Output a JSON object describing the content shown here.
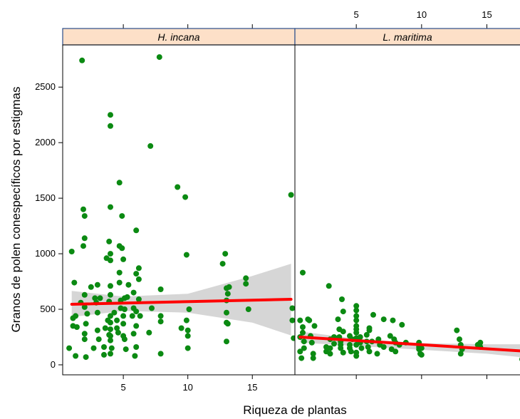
{
  "chart_data": {
    "type": "scatter",
    "layout": "lattice-2-panels",
    "xlabel": "Riqueza de plantas",
    "ylabel": "Granos de polen conespecíficos por estigmas",
    "xlim": [
      0.3,
      18.3
    ],
    "ylim": [
      -90,
      2880
    ],
    "x_ticks": [
      5,
      10,
      15
    ],
    "y_ticks": [
      0,
      500,
      1000,
      1500,
      2000,
      2500
    ],
    "point_color": "#0b8a12",
    "fit_color": "#ff0000",
    "band_color": "#d6d6d6",
    "strip_color": "#fde0c8",
    "strip_border_color": "#2b4e8a",
    "panels": [
      {
        "name": "H. incana",
        "points": [
          [
            0.8,
            150
          ],
          [
            1.0,
            1020
          ],
          [
            1.1,
            350
          ],
          [
            1.1,
            420
          ],
          [
            1.2,
            740
          ],
          [
            1.3,
            80
          ],
          [
            1.3,
            440
          ],
          [
            1.4,
            340
          ],
          [
            1.7,
            560
          ],
          [
            1.8,
            2740
          ],
          [
            1.9,
            1400
          ],
          [
            1.9,
            1070
          ],
          [
            2.0,
            1340
          ],
          [
            2.0,
            1140
          ],
          [
            2.0,
            630
          ],
          [
            2.0,
            520
          ],
          [
            2.0,
            280
          ],
          [
            2.0,
            230
          ],
          [
            2.1,
            70
          ],
          [
            2.1,
            370
          ],
          [
            2.2,
            460
          ],
          [
            2.5,
            700
          ],
          [
            2.7,
            150
          ],
          [
            2.8,
            600
          ],
          [
            2.9,
            560
          ],
          [
            3.0,
            310
          ],
          [
            3.0,
            470
          ],
          [
            3.0,
            720
          ],
          [
            3.1,
            230
          ],
          [
            3.2,
            600
          ],
          [
            3.5,
            90
          ],
          [
            3.5,
            160
          ],
          [
            3.6,
            330
          ],
          [
            3.7,
            960
          ],
          [
            3.8,
            400
          ],
          [
            3.9,
            1110
          ],
          [
            3.9,
            270
          ],
          [
            3.9,
            570
          ],
          [
            4.0,
            2250
          ],
          [
            4.0,
            2150
          ],
          [
            4.0,
            1420
          ],
          [
            4.0,
            1000
          ],
          [
            4.0,
            940
          ],
          [
            4.0,
            710
          ],
          [
            4.0,
            630
          ],
          [
            4.0,
            440
          ],
          [
            4.0,
            380
          ],
          [
            4.0,
            320
          ],
          [
            4.0,
            260
          ],
          [
            4.0,
            220
          ],
          [
            4.0,
            100
          ],
          [
            4.1,
            150
          ],
          [
            4.3,
            470
          ],
          [
            4.5,
            400
          ],
          [
            4.5,
            330
          ],
          [
            4.6,
            290
          ],
          [
            4.7,
            1640
          ],
          [
            4.7,
            1070
          ],
          [
            4.7,
            830
          ],
          [
            4.7,
            740
          ],
          [
            4.8,
            580
          ],
          [
            4.8,
            510
          ],
          [
            4.9,
            1340
          ],
          [
            4.9,
            1050
          ],
          [
            5.0,
            950
          ],
          [
            5.0,
            440
          ],
          [
            5.0,
            370
          ],
          [
            5.0,
            260
          ],
          [
            5.1,
            600
          ],
          [
            5.1,
            500
          ],
          [
            5.1,
            230
          ],
          [
            5.2,
            140
          ],
          [
            5.3,
            610
          ],
          [
            5.4,
            720
          ],
          [
            5.7,
            440
          ],
          [
            5.8,
            650
          ],
          [
            5.8,
            510
          ],
          [
            5.8,
            280
          ],
          [
            5.9,
            80
          ],
          [
            6.0,
            1210
          ],
          [
            6.0,
            820
          ],
          [
            6.0,
            480
          ],
          [
            6.0,
            350
          ],
          [
            6.0,
            160
          ],
          [
            6.2,
            870
          ],
          [
            6.2,
            770
          ],
          [
            6.2,
            590
          ],
          [
            6.3,
            440
          ],
          [
            7.0,
            290
          ],
          [
            7.1,
            1970
          ],
          [
            7.2,
            510
          ],
          [
            7.8,
            2770
          ],
          [
            7.9,
            680
          ],
          [
            7.9,
            440
          ],
          [
            7.9,
            390
          ],
          [
            7.9,
            100
          ],
          [
            9.2,
            1600
          ],
          [
            9.5,
            330
          ],
          [
            9.8,
            1510
          ],
          [
            9.9,
            990
          ],
          [
            9.9,
            400
          ],
          [
            10.0,
            150
          ],
          [
            10.0,
            310
          ],
          [
            10.0,
            260
          ],
          [
            10.1,
            500
          ],
          [
            12.7,
            910
          ],
          [
            12.9,
            1000
          ],
          [
            13.0,
            690
          ],
          [
            13.0,
            580
          ],
          [
            13.0,
            470
          ],
          [
            13.0,
            380
          ],
          [
            13.0,
            210
          ],
          [
            13.1,
            640
          ],
          [
            13.1,
            370
          ],
          [
            13.2,
            700
          ],
          [
            14.5,
            780
          ],
          [
            14.5,
            730
          ],
          [
            14.7,
            500
          ],
          [
            18.0,
            1530
          ],
          [
            18.1,
            510
          ],
          [
            18.1,
            400
          ],
          [
            18.2,
            240
          ]
        ],
        "fit": {
          "x": [
            1.0,
            18.0
          ],
          "y": [
            545,
            590
          ]
        },
        "band": {
          "x": [
            1.0,
            5.0,
            10.0,
            15.0,
            18.0
          ],
          "upper": [
            665,
            615,
            640,
            800,
            910
          ],
          "lower": [
            430,
            485,
            470,
            380,
            265
          ]
        }
      },
      {
        "name": "L. maritima",
        "points": [
          [
            0.7,
            400
          ],
          [
            0.7,
            250
          ],
          [
            0.7,
            120
          ],
          [
            0.8,
            60
          ],
          [
            0.9,
            830
          ],
          [
            0.9,
            340
          ],
          [
            0.9,
            290
          ],
          [
            1.0,
            210
          ],
          [
            1.0,
            150
          ],
          [
            1.3,
            410
          ],
          [
            1.4,
            400
          ],
          [
            1.5,
            260
          ],
          [
            1.6,
            200
          ],
          [
            1.7,
            100
          ],
          [
            1.7,
            60
          ],
          [
            1.8,
            350
          ],
          [
            2.7,
            160
          ],
          [
            2.7,
            120
          ],
          [
            2.9,
            710
          ],
          [
            3.0,
            230
          ],
          [
            3.0,
            150
          ],
          [
            3.0,
            100
          ],
          [
            3.3,
            250
          ],
          [
            3.3,
            190
          ],
          [
            3.6,
            410
          ],
          [
            3.7,
            320
          ],
          [
            3.7,
            250
          ],
          [
            3.8,
            210
          ],
          [
            3.8,
            180
          ],
          [
            3.8,
            150
          ],
          [
            3.9,
            590
          ],
          [
            4.0,
            110
          ],
          [
            4.0,
            480
          ],
          [
            4.0,
            300
          ],
          [
            4.5,
            260
          ],
          [
            4.5,
            180
          ],
          [
            4.5,
            150
          ],
          [
            4.6,
            120
          ],
          [
            4.7,
            230
          ],
          [
            5.0,
            530
          ],
          [
            5.0,
            490
          ],
          [
            5.0,
            440
          ],
          [
            5.0,
            400
          ],
          [
            5.0,
            350
          ],
          [
            5.0,
            320
          ],
          [
            5.0,
            290
          ],
          [
            5.0,
            240
          ],
          [
            5.0,
            180
          ],
          [
            5.0,
            110
          ],
          [
            5.0,
            80
          ],
          [
            5.3,
            200
          ],
          [
            5.3,
            250
          ],
          [
            5.4,
            150
          ],
          [
            5.8,
            210
          ],
          [
            5.8,
            270
          ],
          [
            5.9,
            160
          ],
          [
            6.0,
            330
          ],
          [
            6.0,
            310
          ],
          [
            6.0,
            120
          ],
          [
            6.2,
            210
          ],
          [
            6.3,
            450
          ],
          [
            6.6,
            100
          ],
          [
            6.7,
            230
          ],
          [
            6.8,
            180
          ],
          [
            7.1,
            410
          ],
          [
            7.1,
            160
          ],
          [
            7.6,
            260
          ],
          [
            7.7,
            140
          ],
          [
            7.8,
            400
          ],
          [
            7.9,
            230
          ],
          [
            8.0,
            200
          ],
          [
            8.0,
            120
          ],
          [
            8.3,
            180
          ],
          [
            8.5,
            360
          ],
          [
            8.8,
            200
          ],
          [
            9.8,
            200
          ],
          [
            9.8,
            160
          ],
          [
            9.8,
            140
          ],
          [
            9.9,
            100
          ],
          [
            10.0,
            150
          ],
          [
            10.0,
            90
          ],
          [
            12.7,
            310
          ],
          [
            12.9,
            230
          ],
          [
            13.0,
            180
          ],
          [
            13.0,
            100
          ],
          [
            13.1,
            140
          ],
          [
            14.3,
            180
          ],
          [
            14.5,
            200
          ],
          [
            14.5,
            160
          ],
          [
            17.7,
            50
          ],
          [
            17.9,
            80
          ],
          [
            18.1,
            100
          ]
        ],
        "fit": {
          "x": [
            0.7,
            18.3
          ],
          "y": [
            250,
            120
          ]
        },
        "band": {
          "x": [
            0.7,
            5.0,
            10.0,
            15.0,
            18.3
          ],
          "upper": [
            300,
            235,
            195,
            185,
            185
          ],
          "lower": [
            200,
            170,
            135,
            100,
            60
          ]
        }
      }
    ]
  }
}
